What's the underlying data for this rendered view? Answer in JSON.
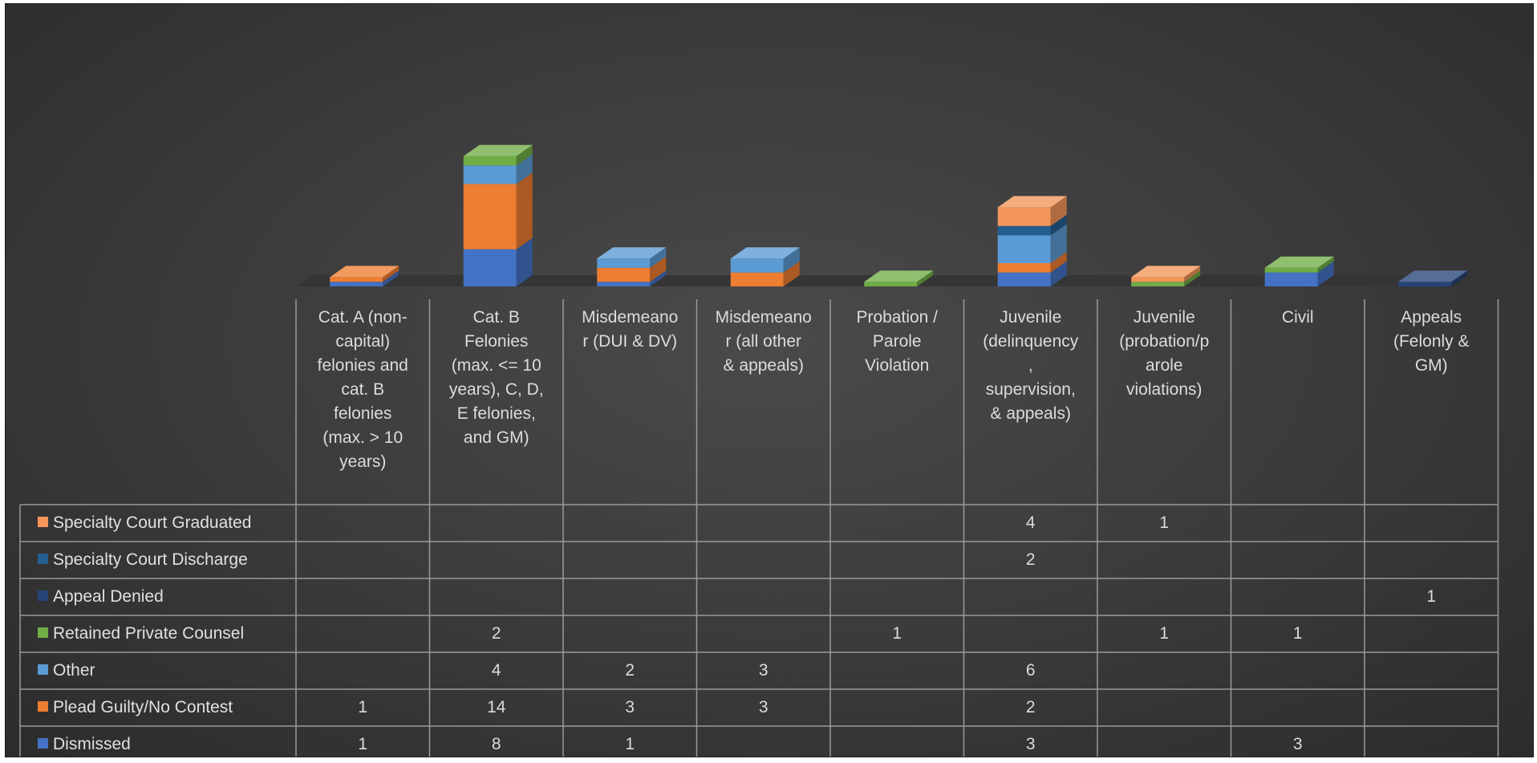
{
  "chart_data": {
    "type": "bar",
    "stacked": true,
    "view": "3d-with-data-table",
    "categories": [
      "Cat. A (non-capital) felonies and cat. B felonies (max. > 10 years)",
      "Cat. B Felonies (max. <= 10 years), C, D, E felonies, and GM)",
      "Misdemeanor (DUI & DV)",
      "Misdemeanor (all other & appeals)",
      "Probation / Parole Violation",
      "Juvenile (delinquency, supervision, & appeals)",
      "Juvenile (probation/parole violations)",
      "Civil",
      "Appeals (Felonly & GM)"
    ],
    "category_display": [
      "Cat. A (non-\ncapital)\nfelonies and\ncat. B\nfelonies\n(max. > 10\nyears)",
      "Cat. B\nFelonies\n(max. <= 10\nyears), C, D,\nE felonies,\nand GM)",
      "Misdemeano\nr  (DUI & DV)",
      "Misdemeano\nr  (all other\n& appeals)",
      "Probation /\nParole\nViolation",
      "Juvenile\n(delinquency\n,\nsupervision,\n& appeals)",
      "Juvenile\n(probation/p\narole\nviolations)",
      "Civil",
      "Appeals\n(Felonly &\nGM)"
    ],
    "series": [
      {
        "name": "Dismissed",
        "color": "#4472c4",
        "values": [
          1,
          8,
          1,
          null,
          null,
          3,
          null,
          3,
          null
        ]
      },
      {
        "name": "Plead Guilty/No Contest",
        "color": "#ed7d31",
        "values": [
          1,
          14,
          3,
          3,
          null,
          2,
          null,
          null,
          null
        ]
      },
      {
        "name": "Other",
        "color": "#5b9bd5",
        "values": [
          null,
          4,
          2,
          3,
          null,
          6,
          null,
          null,
          null
        ]
      },
      {
        "name": "Retained Private Counsel",
        "color": "#70ad47",
        "values": [
          null,
          2,
          null,
          null,
          1,
          null,
          1,
          1,
          null
        ]
      },
      {
        "name": "Appeal Denied",
        "color": "#264478",
        "values": [
          null,
          null,
          null,
          null,
          null,
          null,
          null,
          null,
          1
        ]
      },
      {
        "name": "Specialty Court Discharge",
        "color": "#255e91",
        "values": [
          null,
          null,
          null,
          null,
          null,
          2,
          null,
          null,
          null
        ]
      },
      {
        "name": "Specialty Court Graduated",
        "color": "#f4965a",
        "values": [
          null,
          null,
          null,
          null,
          null,
          4,
          1,
          null,
          null
        ]
      }
    ],
    "table_row_order": [
      "Specialty Court Graduated",
      "Specialty Court Discharge",
      "Appeal Denied",
      "Retained Private Counsel",
      "Other",
      "Plead Guilty/No Contest",
      "Dismissed"
    ],
    "gridlines": false,
    "legend": "in-data-table"
  }
}
